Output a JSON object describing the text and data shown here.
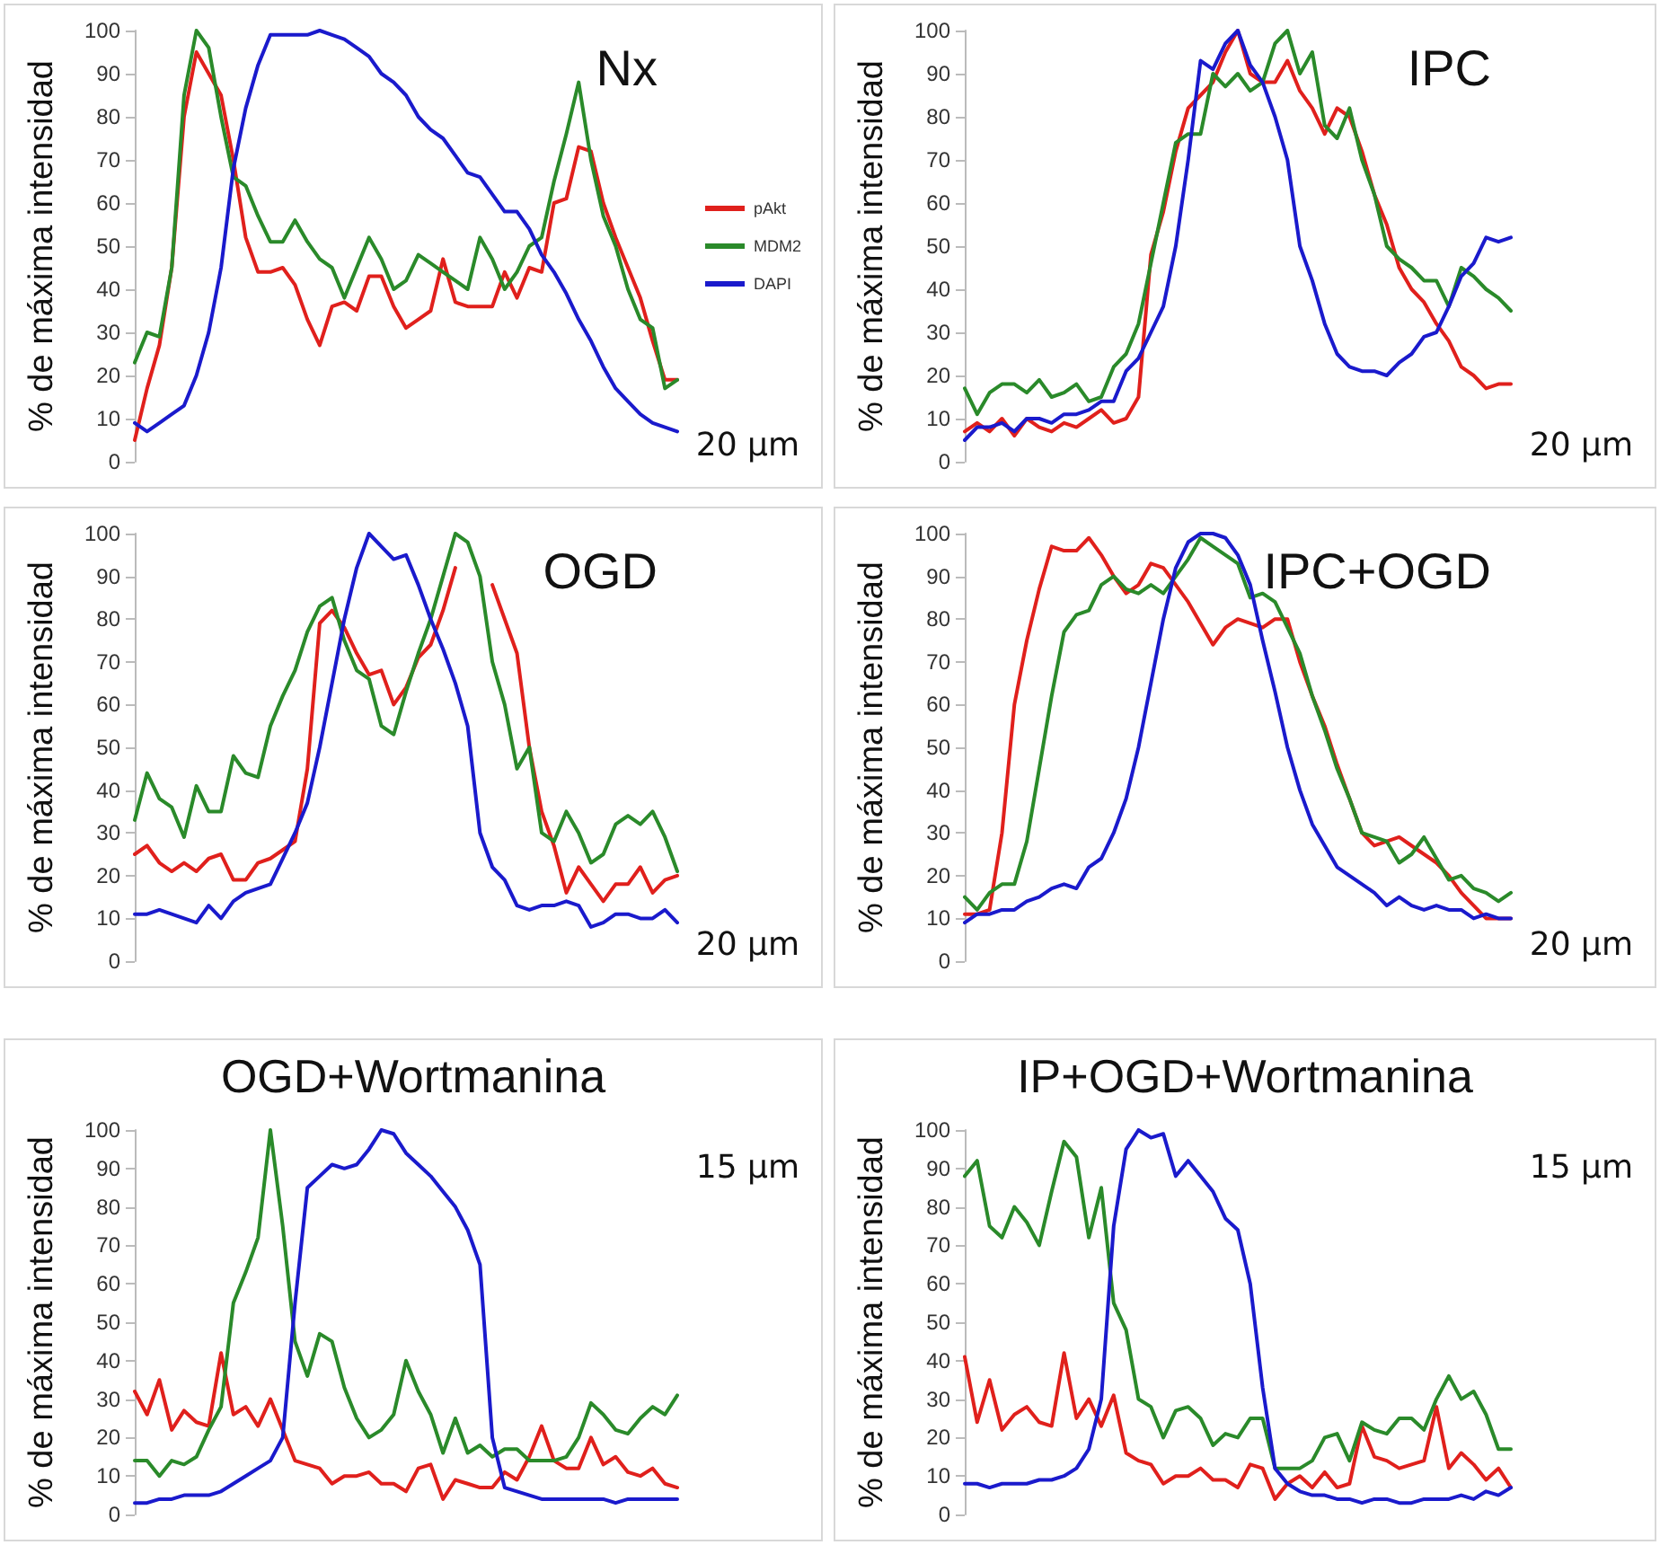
{
  "chart_data": [
    {
      "type": "line",
      "title": "Nx",
      "ylabel": "% de máxima intensidad",
      "annotations": [
        "20 μm"
      ],
      "categories": [
        null,
        null,
        null,
        null,
        null,
        null,
        null,
        null,
        null,
        null,
        null,
        null,
        null,
        null,
        null,
        null,
        null,
        null,
        null,
        null,
        null,
        null,
        null,
        null,
        null,
        null,
        null,
        null,
        null,
        null,
        null,
        null,
        null,
        null,
        null,
        null,
        null,
        null,
        null,
        null,
        null,
        null,
        null,
        null,
        null
      ],
      "ylim": [
        0,
        100
      ],
      "yticks": [
        0,
        10,
        20,
        30,
        40,
        50,
        60,
        70,
        80,
        90,
        100
      ],
      "tick_labels": "y",
      "grid": false,
      "legend": "right",
      "marker": "none",
      "line_style": "solid",
      "series": [
        {
          "name": "pAkt",
          "color": "#e0201c",
          "values": [
            5,
            17,
            27,
            45,
            80,
            95,
            90,
            85,
            70,
            52,
            44,
            44,
            45,
            41,
            33,
            27,
            36,
            37,
            35,
            43,
            43,
            36,
            31,
            33,
            35,
            47,
            37,
            36,
            36,
            36,
            44,
            38,
            45,
            44,
            60,
            61,
            73,
            72,
            60,
            52,
            45,
            38,
            28,
            19,
            19
          ]
        },
        {
          "name": "MDM2",
          "color": "#2a8a2a",
          "values": [
            23,
            30,
            29,
            45,
            85,
            100,
            96,
            80,
            66,
            64,
            57,
            51,
            51,
            56,
            51,
            47,
            45,
            38,
            45,
            52,
            47,
            40,
            42,
            48,
            46,
            44,
            42,
            40,
            52,
            47,
            40,
            44,
            50,
            52,
            65,
            76,
            88,
            70,
            57,
            50,
            40,
            33,
            31,
            17,
            19
          ]
        },
        {
          "name": "DAPI",
          "color": "#1a1acc",
          "values": [
            9,
            7,
            9,
            11,
            13,
            20,
            30,
            45,
            68,
            82,
            92,
            99,
            99,
            99,
            99,
            100,
            99,
            98,
            96,
            94,
            90,
            88,
            85,
            80,
            77,
            75,
            71,
            67,
            66,
            62,
            58,
            58,
            54,
            48,
            44,
            39,
            33,
            28,
            22,
            17,
            14,
            11,
            9,
            8,
            7
          ]
        }
      ]
    },
    {
      "type": "line",
      "title": "IPC",
      "ylabel": "% de máxima intensidad",
      "annotations": [
        "20 μm"
      ],
      "categories": [
        null,
        null,
        null,
        null,
        null,
        null,
        null,
        null,
        null,
        null,
        null,
        null,
        null,
        null,
        null,
        null,
        null,
        null,
        null,
        null,
        null,
        null,
        null,
        null,
        null,
        null,
        null,
        null,
        null,
        null,
        null,
        null,
        null,
        null,
        null,
        null,
        null,
        null,
        null,
        null,
        null,
        null,
        null,
        null,
        null
      ],
      "ylim": [
        0,
        100
      ],
      "yticks": [
        0,
        10,
        20,
        30,
        40,
        50,
        60,
        70,
        80,
        90,
        100
      ],
      "tick_labels": "y",
      "grid": false,
      "marker": "none",
      "line_style": "solid",
      "series": [
        {
          "color": "#e0201c",
          "values": [
            7,
            9,
            7,
            10,
            6,
            10,
            8,
            7,
            9,
            8,
            10,
            12,
            9,
            10,
            15,
            48,
            58,
            72,
            82,
            85,
            88,
            95,
            100,
            90,
            88,
            88,
            93,
            86,
            82,
            76,
            82,
            80,
            72,
            62,
            55,
            45,
            40,
            37,
            32,
            28,
            22,
            20,
            17,
            18,
            18
          ]
        },
        {
          "color": "#2a8a2a",
          "values": [
            17,
            11,
            16,
            18,
            18,
            16,
            19,
            15,
            16,
            18,
            14,
            15,
            22,
            25,
            32,
            46,
            60,
            74,
            76,
            76,
            90,
            87,
            90,
            86,
            88,
            97,
            100,
            90,
            95,
            78,
            75,
            82,
            70,
            62,
            50,
            47,
            45,
            42,
            42,
            36,
            45,
            43,
            40,
            38,
            35
          ]
        },
        {
          "color": "#1a1acc",
          "values": [
            5,
            8,
            8,
            9,
            7,
            10,
            10,
            9,
            11,
            11,
            12,
            14,
            14,
            21,
            24,
            30,
            36,
            50,
            70,
            93,
            91,
            97,
            100,
            92,
            88,
            80,
            70,
            50,
            42,
            32,
            25,
            22,
            21,
            21,
            20,
            23,
            25,
            29,
            30,
            36,
            43,
            46,
            52,
            51,
            52
          ]
        }
      ]
    },
    {
      "type": "line",
      "title": "OGD",
      "ylabel": "% de máxima intensidad",
      "annotations": [
        "20 μm"
      ],
      "categories": [
        null,
        null,
        null,
        null,
        null,
        null,
        null,
        null,
        null,
        null,
        null,
        null,
        null,
        null,
        null,
        null,
        null,
        null,
        null,
        null,
        null,
        null,
        null,
        null,
        null,
        null,
        null,
        null,
        null,
        null,
        null,
        null,
        null,
        null,
        null,
        null,
        null,
        null,
        null,
        null,
        null,
        null,
        null,
        null,
        null
      ],
      "ylim": [
        0,
        100
      ],
      "yticks": [
        0,
        10,
        20,
        30,
        40,
        50,
        60,
        70,
        80,
        90,
        100
      ],
      "tick_labels": "y",
      "grid": false,
      "marker": "none",
      "line_style": "solid",
      "series": [
        {
          "color": "#e0201c",
          "values": [
            25,
            27,
            23,
            21,
            23,
            21,
            24,
            25,
            19,
            19,
            23,
            24,
            26,
            28,
            45,
            79,
            82,
            78,
            72,
            67,
            68,
            60,
            64,
            71,
            74,
            82,
            92,
            null,
            null,
            88,
            80,
            72,
            50,
            35,
            27,
            16,
            22,
            18,
            14,
            18,
            18,
            22,
            16,
            19,
            20
          ]
        },
        {
          "color": "#2a8a2a",
          "values": [
            33,
            44,
            38,
            36,
            29,
            41,
            35,
            35,
            48,
            44,
            43,
            55,
            62,
            68,
            77,
            83,
            85,
            75,
            68,
            66,
            55,
            53,
            63,
            72,
            80,
            90,
            100,
            98,
            90,
            70,
            60,
            45,
            50,
            30,
            28,
            35,
            30,
            23,
            25,
            32,
            34,
            32,
            35,
            29,
            21
          ]
        },
        {
          "color": "#1a1acc",
          "values": [
            11,
            11,
            12,
            11,
            10,
            9,
            13,
            10,
            14,
            16,
            17,
            18,
            24,
            30,
            37,
            50,
            65,
            80,
            92,
            100,
            97,
            94,
            95,
            88,
            80,
            73,
            65,
            55,
            30,
            22,
            19,
            13,
            12,
            13,
            13,
            14,
            13,
            8,
            9,
            11,
            11,
            10,
            10,
            12,
            9
          ]
        }
      ]
    },
    {
      "type": "line",
      "title": "IPC+OGD",
      "ylabel": "% de máxima intensidad",
      "annotations": [
        "20 μm"
      ],
      "categories": [
        null,
        null,
        null,
        null,
        null,
        null,
        null,
        null,
        null,
        null,
        null,
        null,
        null,
        null,
        null,
        null,
        null,
        null,
        null,
        null,
        null,
        null,
        null,
        null,
        null,
        null,
        null,
        null,
        null,
        null,
        null,
        null,
        null,
        null,
        null,
        null,
        null,
        null,
        null,
        null,
        null,
        null,
        null,
        null,
        null
      ],
      "ylim": [
        0,
        100
      ],
      "yticks": [
        0,
        10,
        20,
        30,
        40,
        50,
        60,
        70,
        80,
        90,
        100
      ],
      "tick_labels": "y",
      "grid": false,
      "marker": "none",
      "line_style": "solid",
      "series": [
        {
          "color": "#e0201c",
          "values": [
            11,
            11,
            12,
            30,
            60,
            75,
            87,
            97,
            96,
            96,
            99,
            95,
            90,
            86,
            88,
            93,
            92,
            88,
            84,
            79,
            74,
            78,
            80,
            79,
            78,
            80,
            80,
            70,
            62,
            55,
            46,
            38,
            30,
            27,
            28,
            29,
            27,
            25,
            23,
            20,
            16,
            13,
            10,
            10,
            10
          ]
        },
        {
          "color": "#2a8a2a",
          "values": [
            15,
            12,
            16,
            18,
            18,
            28,
            45,
            62,
            77,
            81,
            82,
            88,
            90,
            87,
            86,
            88,
            86,
            90,
            94,
            99,
            97,
            95,
            93,
            85,
            86,
            84,
            78,
            72,
            62,
            54,
            45,
            38,
            30,
            29,
            28,
            23,
            25,
            29,
            24,
            19,
            20,
            17,
            16,
            14,
            16
          ]
        },
        {
          "color": "#1a1acc",
          "values": [
            9,
            11,
            11,
            12,
            12,
            14,
            15,
            17,
            18,
            17,
            22,
            24,
            30,
            38,
            50,
            65,
            80,
            92,
            98,
            100,
            100,
            99,
            95,
            88,
            75,
            63,
            50,
            40,
            32,
            27,
            22,
            20,
            18,
            16,
            13,
            15,
            13,
            12,
            13,
            12,
            12,
            10,
            11,
            10,
            10
          ]
        }
      ]
    },
    {
      "type": "line",
      "title": "OGD+Wortmanina",
      "ylabel": "% de máxima intensidad",
      "annotations": [
        "15 μm"
      ],
      "categories": [
        null,
        null,
        null,
        null,
        null,
        null,
        null,
        null,
        null,
        null,
        null,
        null,
        null,
        null,
        null,
        null,
        null,
        null,
        null,
        null,
        null,
        null,
        null,
        null,
        null,
        null,
        null,
        null,
        null,
        null,
        null,
        null,
        null,
        null,
        null,
        null,
        null,
        null,
        null,
        null,
        null,
        null,
        null,
        null,
        null
      ],
      "ylim": [
        0,
        100
      ],
      "yticks": [
        0,
        10,
        20,
        30,
        40,
        50,
        60,
        70,
        80,
        90,
        100
      ],
      "tick_labels": "y",
      "grid": false,
      "marker": "none",
      "line_style": "solid",
      "series": [
        {
          "color": "#e0201c",
          "values": [
            32,
            26,
            35,
            22,
            27,
            24,
            23,
            42,
            26,
            28,
            23,
            30,
            22,
            14,
            13,
            12,
            8,
            10,
            10,
            11,
            8,
            8,
            6,
            12,
            13,
            4,
            9,
            8,
            7,
            7,
            11,
            9,
            15,
            23,
            14,
            12,
            12,
            20,
            13,
            15,
            11,
            10,
            12,
            8,
            7
          ]
        },
        {
          "color": "#2a8a2a",
          "values": [
            14,
            14,
            10,
            14,
            13,
            15,
            22,
            28,
            55,
            63,
            72,
            100,
            75,
            45,
            36,
            47,
            45,
            33,
            25,
            20,
            22,
            26,
            40,
            32,
            26,
            16,
            25,
            16,
            18,
            15,
            17,
            17,
            14,
            14,
            14,
            15,
            20,
            29,
            26,
            22,
            21,
            25,
            28,
            26,
            31
          ]
        },
        {
          "color": "#1a1acc",
          "values": [
            3,
            3,
            4,
            4,
            5,
            5,
            5,
            6,
            8,
            10,
            12,
            14,
            20,
            55,
            85,
            88,
            91,
            90,
            91,
            95,
            100,
            99,
            94,
            91,
            88,
            84,
            80,
            74,
            65,
            20,
            7,
            6,
            5,
            4,
            4,
            4,
            4,
            4,
            4,
            3,
            4,
            4,
            4,
            4,
            4
          ]
        }
      ]
    },
    {
      "type": "line",
      "title": "IP+OGD+Wortmanina",
      "ylabel": "% de máxima intensidad",
      "annotations": [
        "15 μm"
      ],
      "categories": [
        null,
        null,
        null,
        null,
        null,
        null,
        null,
        null,
        null,
        null,
        null,
        null,
        null,
        null,
        null,
        null,
        null,
        null,
        null,
        null,
        null,
        null,
        null,
        null,
        null,
        null,
        null,
        null,
        null,
        null,
        null,
        null,
        null,
        null,
        null,
        null,
        null,
        null,
        null,
        null,
        null,
        null,
        null,
        null,
        null
      ],
      "ylim": [
        0,
        100
      ],
      "yticks": [
        0,
        10,
        20,
        30,
        40,
        50,
        60,
        70,
        80,
        90,
        100
      ],
      "tick_labels": "y",
      "grid": false,
      "marker": "none",
      "line_style": "solid",
      "series": [
        {
          "color": "#e0201c",
          "values": [
            41,
            24,
            35,
            22,
            26,
            28,
            24,
            23,
            42,
            25,
            30,
            23,
            31,
            16,
            14,
            13,
            8,
            10,
            10,
            12,
            9,
            9,
            7,
            13,
            12,
            4,
            8,
            10,
            7,
            11,
            7,
            8,
            23,
            15,
            14,
            12,
            13,
            14,
            28,
            12,
            16,
            13,
            9,
            12,
            7
          ]
        },
        {
          "color": "#2a8a2a",
          "values": [
            88,
            92,
            75,
            72,
            80,
            76,
            70,
            84,
            97,
            93,
            72,
            85,
            55,
            48,
            30,
            28,
            20,
            27,
            28,
            25,
            18,
            21,
            20,
            25,
            25,
            12,
            12,
            12,
            14,
            20,
            21,
            14,
            24,
            22,
            21,
            25,
            25,
            22,
            30,
            36,
            30,
            32,
            26,
            17,
            17
          ]
        },
        {
          "color": "#1a1acc",
          "values": [
            8,
            8,
            7,
            8,
            8,
            8,
            9,
            9,
            10,
            12,
            17,
            30,
            75,
            95,
            100,
            98,
            99,
            88,
            92,
            88,
            84,
            77,
            74,
            60,
            33,
            12,
            8,
            6,
            5,
            5,
            4,
            4,
            3,
            4,
            4,
            3,
            3,
            4,
            4,
            4,
            5,
            4,
            6,
            5,
            7
          ]
        }
      ]
    }
  ]
}
